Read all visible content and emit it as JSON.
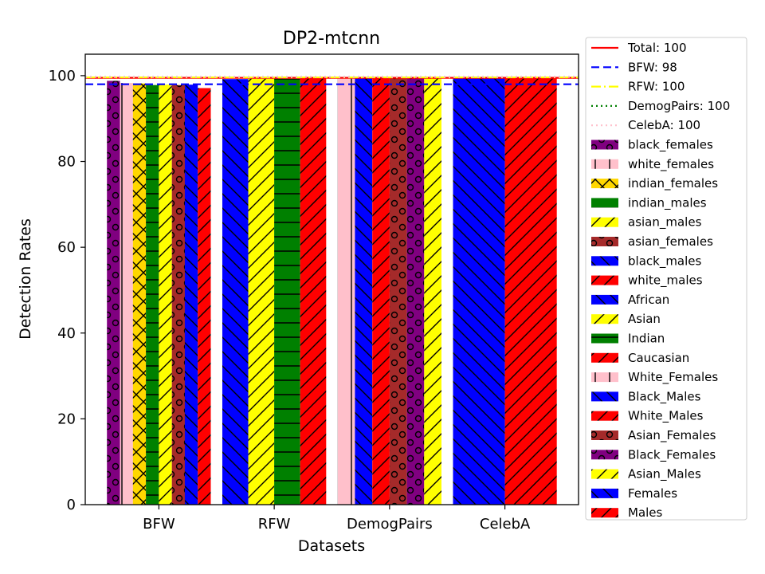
{
  "chart_data": {
    "type": "bar",
    "title": "DP2-mtcnn",
    "xlabel": "Datasets",
    "ylabel": "Detection Rates",
    "ylim": [
      0,
      105
    ],
    "yticks": [
      0,
      20,
      40,
      60,
      80,
      100
    ],
    "categories": [
      "BFW",
      "RFW",
      "DemogPairs",
      "CelebA"
    ],
    "grid": false,
    "legend_position": "right, outside plot",
    "reference_lines": [
      {
        "label": "Total: 100",
        "value": 99.5,
        "color": "#ff0000",
        "style": "solid"
      },
      {
        "label": "BFW: 98",
        "value": 98.0,
        "color": "#0000ff",
        "style": "dashed"
      },
      {
        "label": "RFW: 100",
        "value": 99.6,
        "color": "#ffff00",
        "style": "dashdot"
      },
      {
        "label": "DemogPairs: 100",
        "value": 99.7,
        "color": "#008000",
        "style": "dotted"
      },
      {
        "label": "CelebA: 100",
        "value": 99.7,
        "color": "#ffc0cb",
        "style": "dotted"
      }
    ],
    "groups": [
      {
        "category": "BFW",
        "bars": [
          {
            "series": "black_females",
            "value": 98.8
          },
          {
            "series": "white_females",
            "value": 98.3
          },
          {
            "series": "indian_females",
            "value": 98.2
          },
          {
            "series": "indian_males",
            "value": 97.8
          },
          {
            "series": "asian_males",
            "value": 97.9
          },
          {
            "series": "asian_females",
            "value": 97.8
          },
          {
            "series": "black_males",
            "value": 97.9
          },
          {
            "series": "white_males",
            "value": 97.1
          }
        ]
      },
      {
        "category": "RFW",
        "bars": [
          {
            "series": "African",
            "value": 99.2
          },
          {
            "series": "Asian",
            "value": 99.3
          },
          {
            "series": "Indian",
            "value": 99.3
          },
          {
            "series": "Caucasian",
            "value": 99.4
          }
        ]
      },
      {
        "category": "DemogPairs",
        "bars": [
          {
            "series": "White_Females",
            "value": 99.3
          },
          {
            "series": "Black_Males",
            "value": 99.4
          },
          {
            "series": "White_Males",
            "value": 99.4
          },
          {
            "series": "Asian_Females",
            "value": 99.6
          },
          {
            "series": "Black_Females",
            "value": 99.5
          },
          {
            "series": "Asian_Males",
            "value": 99.5
          }
        ]
      },
      {
        "category": "CelebA",
        "bars": [
          {
            "series": "Females",
            "value": 99.5
          },
          {
            "series": "Males",
            "value": 99.6
          }
        ]
      }
    ],
    "series_styles": [
      {
        "name": "black_females",
        "color": "#800080",
        "hatch": "circles"
      },
      {
        "name": "white_females",
        "color": "#ffc0cb",
        "hatch": "vline"
      },
      {
        "name": "indian_females",
        "color": "#ffd700",
        "hatch": "cross"
      },
      {
        "name": "indian_males",
        "color": "#008000",
        "hatch": "hline"
      },
      {
        "name": "asian_males",
        "color": "#ffff00",
        "hatch": "slash"
      },
      {
        "name": "asian_females",
        "color": "#a52a2a",
        "hatch": "circles"
      },
      {
        "name": "black_males",
        "color": "#0000ff",
        "hatch": "backslash"
      },
      {
        "name": "white_males",
        "color": "#ff0000",
        "hatch": "slash"
      },
      {
        "name": "African",
        "color": "#0000ff",
        "hatch": "backslash"
      },
      {
        "name": "Asian",
        "color": "#ffff00",
        "hatch": "slash"
      },
      {
        "name": "Indian",
        "color": "#008000",
        "hatch": "hline"
      },
      {
        "name": "Caucasian",
        "color": "#ff0000",
        "hatch": "slash"
      },
      {
        "name": "White_Females",
        "color": "#ffc0cb",
        "hatch": "vline"
      },
      {
        "name": "Black_Males",
        "color": "#0000ff",
        "hatch": "backslash"
      },
      {
        "name": "White_Males",
        "color": "#ff0000",
        "hatch": "slash"
      },
      {
        "name": "Asian_Females",
        "color": "#a52a2a",
        "hatch": "circles"
      },
      {
        "name": "Black_Females",
        "color": "#800080",
        "hatch": "circles"
      },
      {
        "name": "Asian_Males",
        "color": "#ffff00",
        "hatch": "slash"
      },
      {
        "name": "Females",
        "color": "#0000ff",
        "hatch": "backslash"
      },
      {
        "name": "Males",
        "color": "#ff0000",
        "hatch": "slash"
      }
    ]
  }
}
